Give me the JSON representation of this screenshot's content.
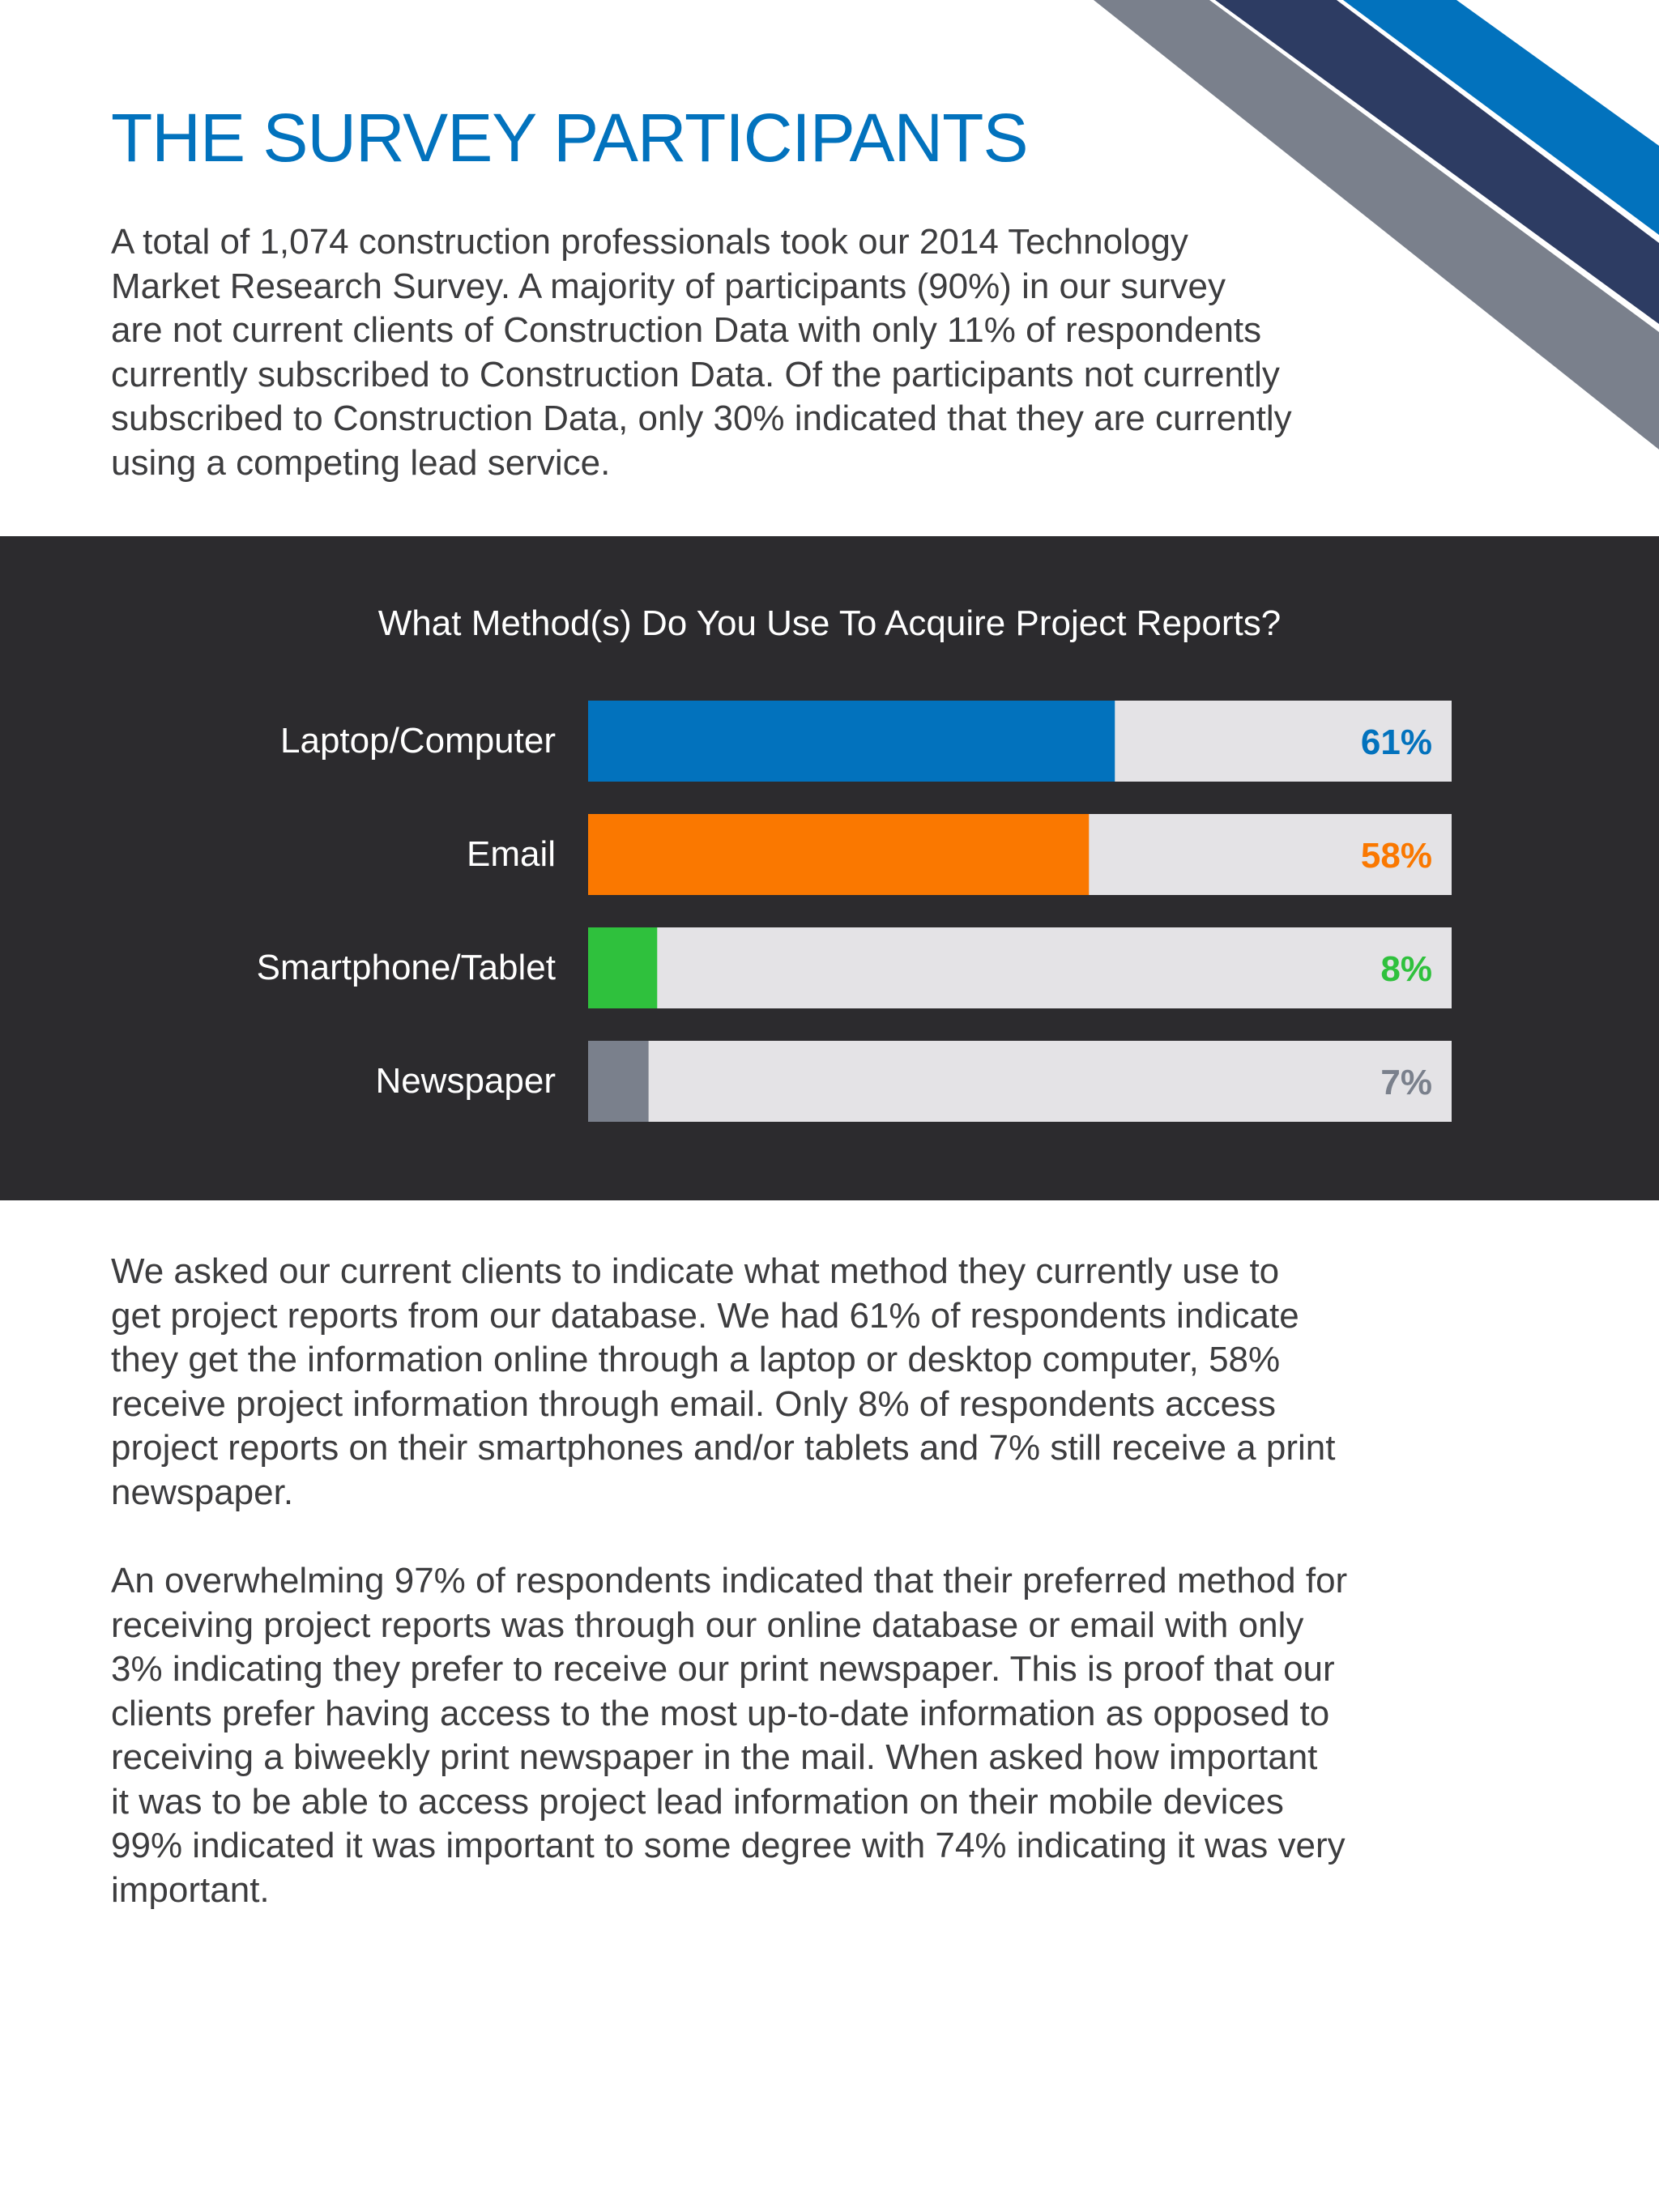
{
  "page": {
    "title": "THE SURVEY PARTICIPANTS",
    "intro": "A total of 1,074 construction professionals took our 2014 Technology\nMarket Research Survey. A majority of participants (90%) in our survey\nare not current clients of Construction Data with only 11% of respondents\ncurrently subscribed to Construction Data. Of the participants not currently\nsubscribed to Construction Data, only 30% indicated that they are currently\nusing a competing lead service.",
    "paragraph_1": "We asked our current clients to indicate what method they currently use to\nget project reports from our database. We had 61% of respondents indicate\nthey get the information online through a laptop or desktop computer, 58%\nreceive project information through email. Only 8% of respondents access\nproject reports on their smartphones and/or tablets and 7% still receive a print\nnewspaper.",
    "paragraph_2": "An overwhelming 97% of respondents indicated that their preferred method for\nreceiving project reports was through our online database or email with only\n3% indicating they prefer to receive our print newspaper. This is proof that our\nclients prefer having access to the most up-to-date information as opposed to\nreceiving a biweekly print newspaper in the mail. When asked how important\nit was to be able to access project lead information on their mobile devices\n99% indicated it was important to some degree with 74% indicating it was very\nimportant."
  },
  "colors": {
    "title_blue": "#0272bd",
    "stripe_gray": "#7a808c",
    "stripe_navy": "#2d3c63",
    "stripe_blue": "#0272bd",
    "panel_bg": "#2c2b2e",
    "track": "#e4e3e6"
  },
  "chart_data": {
    "type": "bar",
    "orientation": "horizontal",
    "title": "What Method(s) Do You Use To Acquire Project Reports?",
    "categories": [
      "Laptop/Computer",
      "Email",
      "Smartphone/Tablet",
      "Newspaper"
    ],
    "values": [
      61,
      58,
      8,
      7
    ],
    "value_labels": [
      "61%",
      "58%",
      "8%",
      "7%"
    ],
    "colors": [
      "#0272bd",
      "#fa7800",
      "#2fc13d",
      "#7a808c"
    ],
    "xlim": [
      0,
      100
    ],
    "grid": false,
    "legend": "none"
  }
}
